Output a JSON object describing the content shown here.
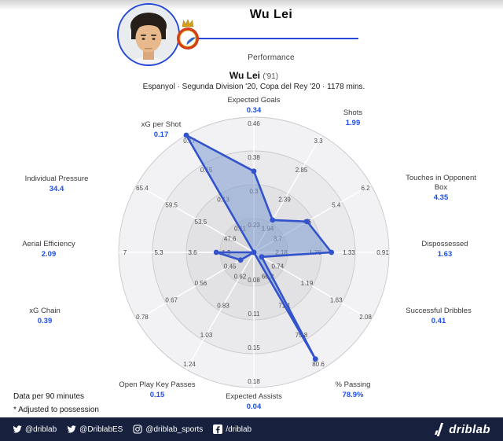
{
  "header": {
    "title": "Wu Lei",
    "subtitle": "Performance"
  },
  "chart_header": {
    "player": "Wu Lei",
    "birth_year": "('91)",
    "context": "Espanyol · Segunda Division '20, Copa del Rey '20 · 1178 mins."
  },
  "notes": {
    "line1": "Data per 90 minutes",
    "line2": "* Adjusted to possession"
  },
  "footer": {
    "social": [
      {
        "icon": "twitter-icon",
        "label": "@driblab"
      },
      {
        "icon": "twitter-icon",
        "label": "@DriblabES"
      },
      {
        "icon": "instagram-icon",
        "label": "@driblab_sports"
      },
      {
        "icon": "facebook-icon",
        "label": "/driblab"
      }
    ],
    "brand": "driblab"
  },
  "colors": {
    "accent": "#2648d8",
    "value_label": "#1d4fe8",
    "polygon_stroke": "#3253cb",
    "polygon_fill": "rgba(125,155,210,0.55)",
    "footer_bg": "#17213d",
    "footer_text": "#ffffff",
    "band_inner": "#d9d9db",
    "band_outer": "#f2f2f4"
  },
  "chart_data": {
    "type": "radar",
    "title": "Wu Lei ('91)",
    "subtitle": "Espanyol · Segunda Division '20, Copa del Rey '20 · 1178 mins.",
    "rings": 4,
    "grid": "concentric-circles, 12 spokes, tick labels per ring",
    "axes": [
      {
        "label": "Expected Goals",
        "value": "0.34",
        "ticks": [
          0.23,
          0.3,
          0.38,
          0.46
        ]
      },
      {
        "label": "Shots",
        "value": "1.99",
        "ticks": [
          1.94,
          2.39,
          2.85,
          3.3
        ]
      },
      {
        "label": "Touches in Opponent Box",
        "value": "4.35",
        "ticks": [
          3.7,
          4.6,
          5.4,
          6.2
        ]
      },
      {
        "label": "Dispossessed",
        "value": "1.63",
        "ticks": [
          2.18,
          1.76,
          1.33,
          0.91
        ]
      },
      {
        "label": "Successful Dribbles",
        "value": "0.41",
        "ticks": [
          0.74,
          1.19,
          1.63,
          2.08
        ]
      },
      {
        "label": "% Passing",
        "value": "78.9%",
        "ticks": [
          66.3,
          71.1,
          75.8,
          80.6
        ]
      },
      {
        "label": "Expected Assists",
        "value": "0.04",
        "ticks": [
          0.08,
          0.11,
          0.15,
          0.18
        ]
      },
      {
        "label": "Open Play Key Passes",
        "value": "0.15",
        "ticks": [
          0.62,
          0.83,
          1.03,
          1.24
        ]
      },
      {
        "label": "xG Chain",
        "value": "0.39",
        "ticks": [
          0.45,
          0.56,
          0.67,
          0.78
        ]
      },
      {
        "label": "Aerial Efficiency",
        "value": "2.09",
        "ticks": [
          1.9,
          3.6,
          5.3,
          7
        ]
      },
      {
        "label": "Individual Pressure",
        "value": "34.4",
        "ticks": [
          47.6,
          53.5,
          59.5,
          65.4
        ]
      },
      {
        "label": "xG per Shot",
        "value": "0.17",
        "ticks": [
          0.11,
          0.13,
          0.15,
          0.17
        ]
      }
    ]
  }
}
